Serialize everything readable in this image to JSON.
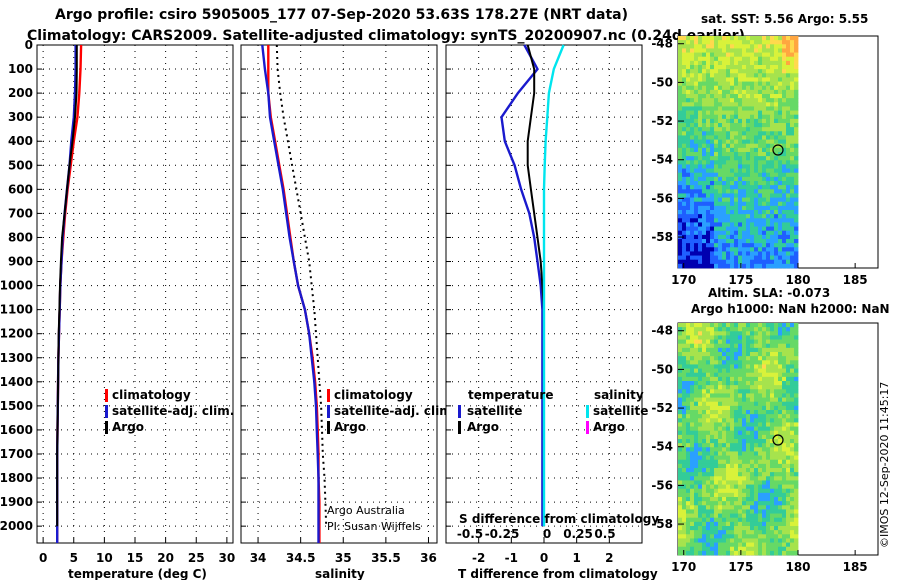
{
  "titles": {
    "line1": "Argo profile: csiro 5905005_177 07-Sep-2020 53.63S 178.27E (NRT data)",
    "line2": "Climatology: CARS2009. Satellite-adjusted climatology: synTS_20200907.nc (0.24d earlier)"
  },
  "colors": {
    "climatology": "#ff0000",
    "satellite": "#1a1acd",
    "argo": "#000000",
    "s_satellite": "#00e5ee",
    "s_argo": "#ff00ff"
  },
  "chart_data": [
    {
      "type": "line",
      "id": "temperature",
      "xlabel": "temperature (deg C)",
      "ylabel": "",
      "xlim": [
        -1,
        31
      ],
      "ylim": [
        2070,
        0
      ],
      "xticks": [
        0,
        5,
        10,
        15,
        20,
        25,
        30
      ],
      "yticks": [
        0,
        100,
        200,
        300,
        400,
        500,
        600,
        700,
        800,
        900,
        1000,
        1100,
        1200,
        1300,
        1400,
        1500,
        1600,
        1700,
        1800,
        1900,
        2000
      ],
      "grid": true,
      "legend": {
        "position": "center-right",
        "entries": [
          "climatology",
          "satellite-adj. clim.",
          "Argo"
        ]
      },
      "series": [
        {
          "name": "climatology",
          "color": "#ff0000",
          "x": [
            6.2,
            6.1,
            5.9,
            5.6,
            5.0,
            4.5,
            4.0,
            3.6,
            3.3,
            3.0,
            2.8,
            2.7,
            2.6,
            2.5,
            2.45,
            2.4,
            2.35,
            2.3,
            2.3,
            2.3,
            2.3,
            2.3
          ],
          "y": [
            0,
            100,
            200,
            300,
            400,
            500,
            600,
            700,
            800,
            900,
            1000,
            1100,
            1200,
            1300,
            1400,
            1500,
            1600,
            1700,
            1800,
            1900,
            2000,
            2070
          ]
        },
        {
          "name": "satellite-adj. clim.",
          "color": "#1a1acd",
          "x": [
            5.3,
            5.3,
            5.2,
            5.0,
            4.6,
            4.3,
            3.9,
            3.5,
            3.2,
            3.0,
            2.8,
            2.7,
            2.6,
            2.5,
            2.45,
            2.4,
            2.35,
            2.3,
            2.3,
            2.3,
            2.3,
            2.3
          ],
          "y": [
            0,
            100,
            200,
            300,
            400,
            500,
            600,
            700,
            800,
            900,
            1000,
            1100,
            1200,
            1300,
            1400,
            1500,
            1600,
            1700,
            1800,
            1900,
            2000,
            2070
          ]
        },
        {
          "name": "Argo",
          "color": "#000000",
          "x": [
            5.5,
            5.5,
            5.45,
            5.2,
            4.8,
            4.3,
            3.9,
            3.5,
            3.1,
            2.9,
            2.75,
            2.65,
            2.55,
            2.5,
            2.45,
            2.4,
            2.35,
            2.3,
            2.3,
            2.3,
            2.3
          ],
          "y": [
            0,
            100,
            200,
            300,
            400,
            500,
            600,
            700,
            800,
            900,
            1000,
            1100,
            1200,
            1300,
            1400,
            1500,
            1600,
            1700,
            1800,
            1900,
            2000
          ]
        }
      ]
    },
    {
      "type": "line",
      "id": "salinity",
      "xlabel": "salinity",
      "ylabel": "",
      "xlim": [
        33.8,
        36.1
      ],
      "ylim": [
        2070,
        0
      ],
      "xticks": [
        34,
        34.5,
        35,
        35.5,
        36
      ],
      "grid": true,
      "legend": {
        "position": "center-right",
        "entries": [
          "climatology",
          "satellite-adj. clim.",
          "Argo"
        ]
      },
      "annotations": [
        "Argo Australia",
        "PI: Susan Wijffels"
      ],
      "series": [
        {
          "name": "climatology",
          "color": "#ff0000",
          "x": [
            34.12,
            34.12,
            34.12,
            34.15,
            34.2,
            34.25,
            34.3,
            34.34,
            34.38,
            34.42,
            34.47,
            34.55,
            34.6,
            34.64,
            34.67,
            34.69,
            34.7,
            34.71,
            34.71,
            34.72,
            34.72,
            34.72
          ],
          "y": [
            0,
            100,
            200,
            300,
            400,
            500,
            600,
            700,
            800,
            900,
            1000,
            1100,
            1200,
            1300,
            1400,
            1500,
            1600,
            1700,
            1800,
            1900,
            2000,
            2070
          ]
        },
        {
          "name": "satellite-adj. clim.",
          "color": "#1a1acd",
          "x": [
            34.05,
            34.08,
            34.12,
            34.14,
            34.19,
            34.24,
            34.29,
            34.33,
            34.37,
            34.42,
            34.47,
            34.55,
            34.6,
            34.63,
            34.66,
            34.68,
            34.69,
            34.7,
            34.71,
            34.71,
            34.71,
            34.71
          ],
          "y": [
            0,
            100,
            200,
            300,
            400,
            500,
            600,
            700,
            800,
            900,
            1000,
            1100,
            1200,
            1300,
            1400,
            1500,
            1600,
            1700,
            1800,
            1900,
            2000,
            2070
          ]
        },
        {
          "name": "Argo",
          "color": "#000000",
          "x": [
            34.22,
            34.23,
            34.26,
            34.3,
            34.35,
            34.4,
            34.45,
            34.5,
            34.55,
            34.6,
            34.63,
            34.66,
            34.68,
            34.7,
            34.72,
            34.74,
            34.75,
            34.76,
            34.78,
            34.79,
            34.8
          ],
          "y": [
            0,
            100,
            200,
            300,
            400,
            500,
            600,
            700,
            800,
            900,
            1000,
            1100,
            1200,
            1300,
            1400,
            1500,
            1600,
            1700,
            1800,
            1900,
            2000
          ]
        }
      ]
    },
    {
      "type": "line",
      "id": "difference",
      "xlabel": "T difference from climatology",
      "xlabel_top": "S difference from climatology",
      "xlim": [
        -3,
        3
      ],
      "ylim": [
        2070,
        0
      ],
      "xticks": [
        -2,
        -1,
        0,
        1,
        2
      ],
      "xticks_top": [
        -0.5,
        -0.25,
        0,
        0.25,
        0.5
      ],
      "grid": true,
      "legend": {
        "position": "center",
        "temperature_entries": [
          "temperature",
          "satellite",
          "Argo"
        ],
        "salinity_entries": [
          "salinity",
          "satellite",
          "Argo"
        ]
      },
      "series": [
        {
          "name": "temperature satellite",
          "color": "#1a1acd",
          "x": [
            -0.6,
            -0.2,
            -0.8,
            -1.3,
            -1.2,
            -0.9,
            -0.7,
            -0.45,
            -0.3,
            -0.2,
            -0.1,
            -0.05,
            -0.05,
            -0.05,
            -0.05,
            -0.05,
            -0.05,
            -0.05,
            -0.05,
            -0.05,
            -0.05
          ],
          "y": [
            0,
            100,
            200,
            300,
            400,
            500,
            600,
            700,
            800,
            900,
            1000,
            1100,
            1200,
            1300,
            1400,
            1500,
            1600,
            1700,
            1800,
            1900,
            2000
          ]
        },
        {
          "name": "temperature Argo",
          "color": "#000000",
          "x": [
            -0.5,
            -0.3,
            -0.3,
            -0.4,
            -0.5,
            -0.5,
            -0.4,
            -0.3,
            -0.2,
            -0.1,
            -0.05,
            0,
            0,
            0,
            0,
            0,
            0,
            0,
            0,
            0,
            0
          ],
          "y": [
            0,
            100,
            200,
            300,
            400,
            500,
            600,
            700,
            800,
            900,
            1000,
            1100,
            1200,
            1300,
            1400,
            1500,
            1600,
            1700,
            1800,
            1900,
            2000
          ]
        },
        {
          "name": "salinity satellite",
          "color": "#00e5ee",
          "x": [
            0.6,
            0.3,
            0.15,
            0.1,
            0.05,
            0.02,
            0,
            0,
            0,
            0,
            0,
            0,
            0,
            0,
            0,
            0,
            0,
            0,
            0,
            0,
            0
          ],
          "y": [
            0,
            100,
            200,
            300,
            400,
            500,
            600,
            700,
            800,
            900,
            1000,
            1100,
            1200,
            1300,
            1400,
            1500,
            1600,
            1700,
            1800,
            1900,
            2000
          ]
        }
      ]
    },
    {
      "type": "heatmap",
      "id": "sst_map",
      "title": "sat. SST: 5.56 Argo: 5.55",
      "xticks": [
        170,
        175,
        180,
        185
      ],
      "yticks": [
        -48,
        -50,
        -52,
        -54,
        -56,
        -58
      ],
      "xlim": [
        169.5,
        187
      ],
      "ylim": [
        -59.6,
        -47.6
      ],
      "data_extent_lon": [
        169.5,
        180
      ],
      "marker": {
        "lon": 178.27,
        "lat": -53.63
      }
    },
    {
      "type": "heatmap",
      "id": "sla_map",
      "title": "Altim. SLA: -0.073",
      "subtitle": "Argo h1000: NaN h2000: NaN",
      "xticks": [
        170,
        175,
        180,
        185
      ],
      "yticks": [
        -48,
        -50,
        -52,
        -54,
        -56,
        -58
      ],
      "xlim": [
        169.5,
        187
      ],
      "ylim": [
        -59.6,
        -47.6
      ],
      "data_extent_lon": [
        169.5,
        180
      ],
      "marker": {
        "lon": 178.27,
        "lat": -53.63
      }
    }
  ],
  "credit": "©IMOS 12-Sep-2020 11:45:17"
}
